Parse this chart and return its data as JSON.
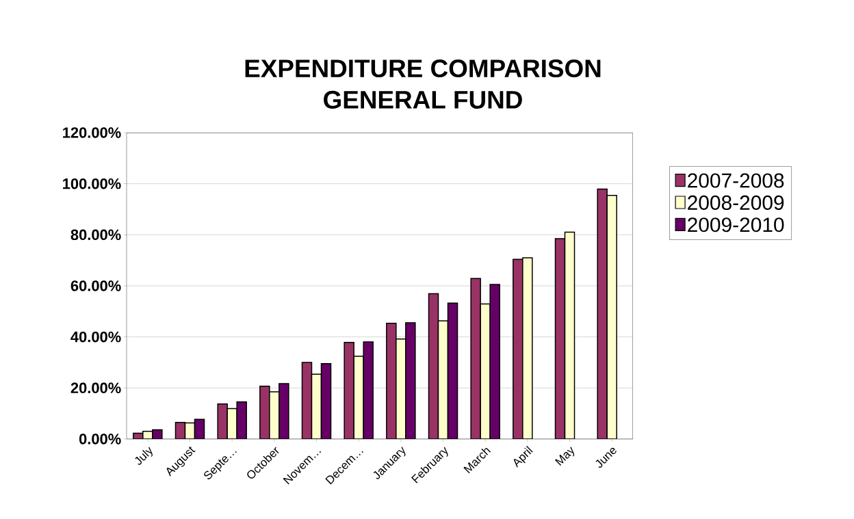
{
  "chart_data": {
    "type": "bar",
    "title": "EXPENDITURE COMPARISON\nGENERAL FUND",
    "categories": [
      "July",
      "August",
      "Septe…",
      "October",
      "Novem…",
      "Decem…",
      "January",
      "February",
      "March",
      "April",
      "May",
      "June"
    ],
    "series": [
      {
        "name": "2007-2008",
        "color": "#993366",
        "values": [
          2.3,
          6.5,
          13.7,
          20.7,
          30.0,
          37.8,
          45.3,
          56.9,
          62.9,
          70.4,
          78.5,
          97.9
        ]
      },
      {
        "name": "2008-2009",
        "color": "#ffffcc",
        "values": [
          3.0,
          6.3,
          11.9,
          18.5,
          25.4,
          32.4,
          39.2,
          46.3,
          52.9,
          71.0,
          81.0,
          95.4
        ]
      },
      {
        "name": "2009-2010",
        "color": "#660066",
        "values": [
          3.6,
          7.7,
          14.5,
          21.7,
          29.5,
          38.0,
          45.5,
          53.2,
          60.5,
          null,
          null,
          null
        ]
      }
    ],
    "ylim": [
      0,
      120
    ],
    "yticks": [
      {
        "value": 0,
        "label": "0.00%"
      },
      {
        "value": 20,
        "label": "20.00%"
      },
      {
        "value": 40,
        "label": "40.00%"
      },
      {
        "value": 60,
        "label": "60.00%"
      },
      {
        "value": 80,
        "label": "80.00%"
      },
      {
        "value": 100,
        "label": "100.00%"
      },
      {
        "value": 120,
        "label": "120.00%"
      }
    ],
    "grid": "y",
    "legend": "right"
  }
}
